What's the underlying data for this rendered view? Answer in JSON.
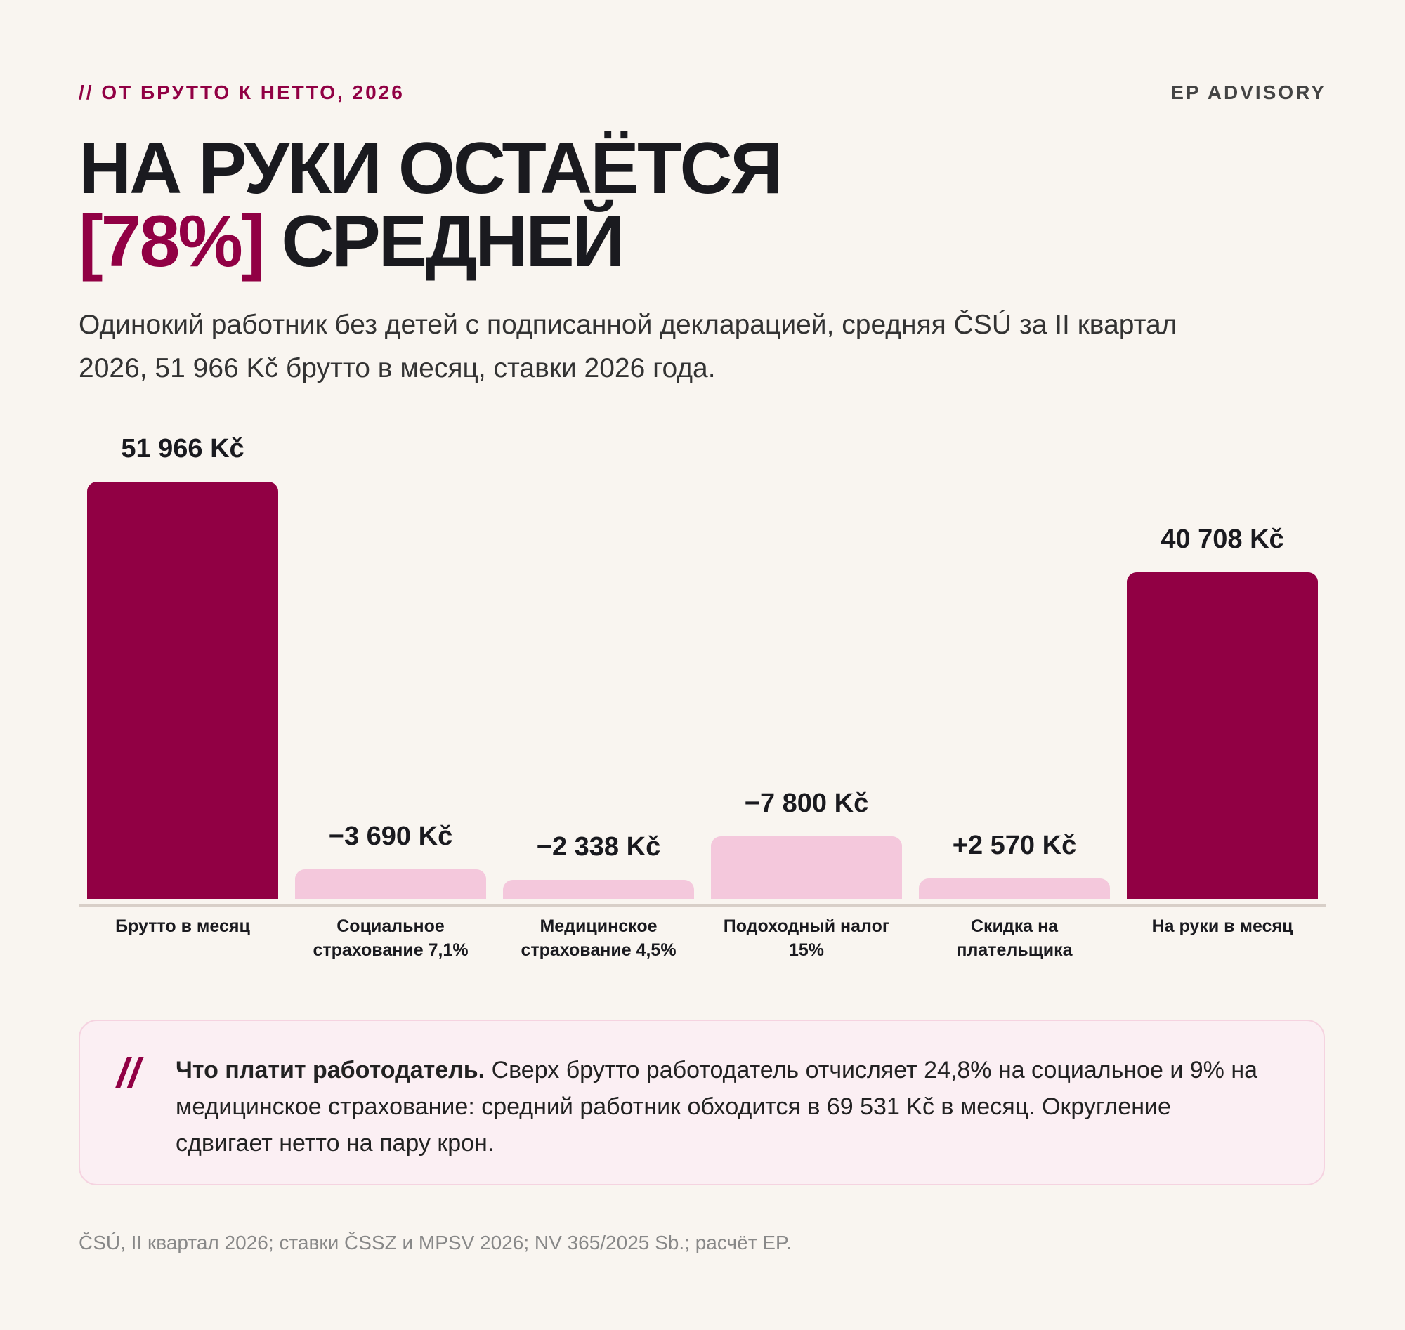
{
  "header": {
    "kicker": "// ОТ БРУТТО К НЕТТО, 2026",
    "brand": "EP ADVISORY",
    "title_line1": "НА РУКИ ОСТАЁТСЯ",
    "title_highlight": "[78%]",
    "title_line2": "СРЕДНЕЙ",
    "subtitle": "Одинокий работник без детей с подписанной декларацией, средняя ČSÚ за II квартал 2026, 51 966 Kč брутто в месяц, ставки 2026 года."
  },
  "chart_data": {
    "type": "bar",
    "categories": [
      "Брутто в месяц",
      "Социальное страхование 7,1%",
      "Медицинское страхование 4,5%",
      "Подоходный налог 15%",
      "Скидка на плательщика",
      "На руки в месяц"
    ],
    "values": [
      51966,
      -3690,
      -2338,
      -7800,
      2570,
      40708
    ],
    "value_labels": [
      "51 966 Kč",
      "−3 690 Kč",
      "−2 338 Kč",
      "−7 800 Kč",
      "+2 570 Kč",
      "40 708 Kč"
    ],
    "colors": [
      "#910044",
      "#f4c8dc",
      "#f4c8dc",
      "#f4c8dc",
      "#f4c8dc",
      "#910044"
    ]
  },
  "note": {
    "lead": "Что платит работодатель.",
    "text": " Сверх брутто работодатель отчисляет 24,8% на социальное и 9% на медицинское страхование: средний работник обходится в 69 531 Kč в месяц. Округление сдвигает нетто на пару крон."
  },
  "footer": "ČSÚ, II квартал 2026; ставки ČSSZ и MPSV 2026; NV 365/2025 Sb.; расчёт EP."
}
